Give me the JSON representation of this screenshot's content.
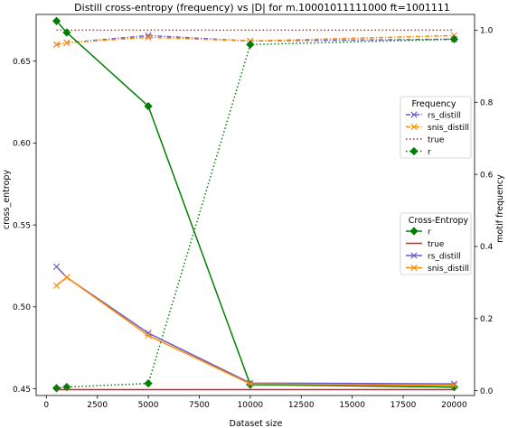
{
  "chart_data": {
    "type": "line",
    "title": "Distill cross-entropy (frequency) vs |D| for m.10001011111000 ft=1001111",
    "xlabel": "Dataset size",
    "ylabel_left": "cross_entropy",
    "ylabel_right": "motif frequency",
    "xlim": [
      -500,
      21000
    ],
    "ylim_left": [
      0.4459,
      0.6785
    ],
    "ylim_right": [
      -0.0134,
      1.0436
    ],
    "x_ticks": [
      0,
      2500,
      5000,
      7500,
      10000,
      12500,
      15000,
      17500,
      20000
    ],
    "x_tick_labels": [
      "0",
      "2500",
      "5000",
      "7500",
      "10000",
      "12500",
      "15000",
      "17500",
      "20000"
    ],
    "y_left_ticks": [
      0.45,
      0.5,
      0.55,
      0.6,
      0.65
    ],
    "y_left_tick_labels": [
      "0.45",
      "0.50",
      "0.55",
      "0.60",
      "0.65"
    ],
    "y_right_ticks": [
      0.0,
      0.2,
      0.4,
      0.6,
      0.8,
      1.0
    ],
    "y_right_tick_labels": [
      "0.0",
      "0.2",
      "0.4",
      "0.6",
      "0.8",
      "1.0"
    ],
    "grid": false,
    "x": [
      500,
      1000,
      5000,
      10000,
      20000
    ],
    "series_left": [
      {
        "name": "r",
        "color": "#008000",
        "dash": "solid",
        "marker": "diamond",
        "values": [
          0.6745,
          0.6675,
          0.6225,
          0.4525,
          0.451
        ]
      },
      {
        "name": "true",
        "color": "#e41a1c",
        "dash": "solid",
        "marker": "none",
        "values": [
          0.4495,
          0.4495,
          0.4495,
          0.4495,
          0.4495
        ]
      },
      {
        "name": "rs_distill",
        "color": "#6a5acd",
        "dash": "solid",
        "marker": "x",
        "values": [
          0.5245,
          0.518,
          0.484,
          0.4535,
          0.453
        ]
      },
      {
        "name": "snis_distill",
        "color": "#ff8c00",
        "dash": "solid",
        "marker": "x",
        "values": [
          0.513,
          0.518,
          0.4825,
          0.453,
          0.452
        ]
      }
    ],
    "series_right": [
      {
        "name": "rs_distill",
        "color": "#6a5acd",
        "dash": "dashdot",
        "marker": "x",
        "values": [
          0.96,
          0.965,
          0.985,
          0.97,
          0.975
        ]
      },
      {
        "name": "snis_distill",
        "color": "#ff8c00",
        "dash": "dashdot",
        "marker": "x",
        "values": [
          0.96,
          0.965,
          0.98,
          0.97,
          0.985
        ]
      },
      {
        "name": "true",
        "color": "#e41a1c",
        "dash": "dotted",
        "marker": "none",
        "values": [
          1.0,
          1.0,
          1.0,
          1.0,
          1.0
        ]
      },
      {
        "name": "r",
        "color": "#008000",
        "dash": "dotted",
        "marker": "diamond",
        "values": [
          0.007,
          0.01,
          0.02,
          0.96,
          0.975
        ]
      }
    ],
    "legend_frequency": {
      "title": "Frequency",
      "placement": "center-right",
      "entries": [
        "rs_distill",
        "snis_distill",
        "true",
        "r"
      ]
    },
    "legend_cross_entropy": {
      "title": "Cross-Entropy",
      "placement": "lower-right",
      "entries": [
        "r",
        "true",
        "rs_distill",
        "snis_distill"
      ]
    }
  }
}
